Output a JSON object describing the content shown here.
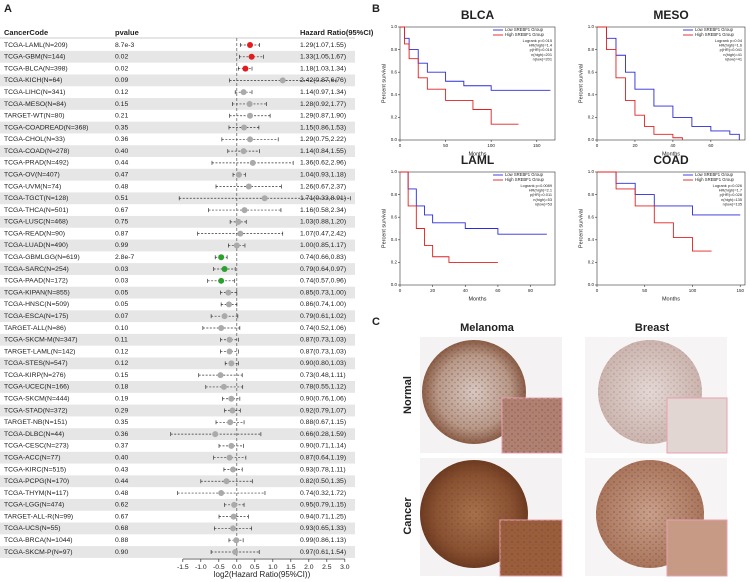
{
  "panels": {
    "a": "A",
    "b": "B",
    "c": "C"
  },
  "forest": {
    "type": "forest",
    "headers": [
      "CancerCode",
      "pvalue",
      "Hazard Ratio(95%CI)"
    ],
    "xlabel": "log2(Hazard Ratio(95%CI))",
    "xscale": "log2",
    "xlim": [
      -1.8,
      3.2
    ],
    "xticks": [
      -1.5,
      {
        "value": -1,
        "label": "-1.0"
      },
      -0.5,
      {
        "value": 0,
        "label": "0.0"
      },
      0.5,
      {
        "value": 1,
        "label": "1.0"
      },
      1.5,
      {
        "value": 2,
        "label": "2.0"
      },
      2.5,
      {
        "value": 3,
        "label": "3.0"
      }
    ],
    "rows": [
      {
        "code": "TCGA-LAML(N=209)",
        "p": "8.7e-3",
        "hr_label": "1.29(1.07,1.55)",
        "hr": 1.29,
        "lo": 1.07,
        "hi": 1.55,
        "color": "#e41a1c"
      },
      {
        "code": "TCGA-GBM(N=144)",
        "p": "0.02",
        "hr_label": "1.33(1.05,1.67)",
        "hr": 1.33,
        "lo": 1.05,
        "hi": 1.67,
        "color": "#e41a1c"
      },
      {
        "code": "TCGA-BLCA(N=398)",
        "p": "0.02",
        "hr_label": "1.18(1.03,1.34)",
        "hr": 1.18,
        "lo": 1.03,
        "hi": 1.34,
        "color": "#e41a1c"
      },
      {
        "code": "TCGA-KICH(N=64)",
        "p": "0.09",
        "hr_label": "2.42(0.87,6.76)",
        "hr": 2.42,
        "lo": 0.87,
        "hi": 6.76,
        "color": "#aaaaaa"
      },
      {
        "code": "TCGA-LIHC(N=341)",
        "p": "0.12",
        "hr_label": "1.14(0.97,1.34)",
        "hr": 1.14,
        "lo": 0.97,
        "hi": 1.34,
        "color": "#aaaaaa"
      },
      {
        "code": "TCGA-MESO(N=84)",
        "p": "0.15",
        "hr_label": "1.28(0.92,1.77)",
        "hr": 1.28,
        "lo": 0.92,
        "hi": 1.77,
        "color": "#aaaaaa"
      },
      {
        "code": "TARGET-WT(N=80)",
        "p": "0.21",
        "hr_label": "1.29(0.87,1.90)",
        "hr": 1.29,
        "lo": 0.87,
        "hi": 1.9,
        "color": "#aaaaaa"
      },
      {
        "code": "TCGA-COADREAD(N=368)",
        "p": "0.35",
        "hr_label": "1.15(0.86,1.53)",
        "hr": 1.15,
        "lo": 0.86,
        "hi": 1.53,
        "color": "#aaaaaa"
      },
      {
        "code": "TCGA-CHOL(N=33)",
        "p": "0.36",
        "hr_label": "1.29(0.75,2.22)",
        "hr": 1.29,
        "lo": 0.75,
        "hi": 2.22,
        "color": "#aaaaaa"
      },
      {
        "code": "TCGA-COAD(N=278)",
        "p": "0.40",
        "hr_label": "1.14(0.84,1.55)",
        "hr": 1.14,
        "lo": 0.84,
        "hi": 1.55,
        "color": "#aaaaaa"
      },
      {
        "code": "TCGA-PRAD(N=492)",
        "p": "0.44",
        "hr_label": "1.36(0.62,2.96)",
        "hr": 1.36,
        "lo": 0.62,
        "hi": 2.96,
        "color": "#aaaaaa"
      },
      {
        "code": "TCGA-OV(N=407)",
        "p": "0.47",
        "hr_label": "1.04(0.93,1.18)",
        "hr": 1.04,
        "lo": 0.93,
        "hi": 1.18,
        "color": "#aaaaaa"
      },
      {
        "code": "TCGA-UVM(N=74)",
        "p": "0.48",
        "hr_label": "1.26(0.67,2.37)",
        "hr": 1.26,
        "lo": 0.67,
        "hi": 2.37,
        "color": "#aaaaaa"
      },
      {
        "code": "TCGA-TGCT(N=128)",
        "p": "0.51",
        "hr_label": "1.71(0.33,8.91)",
        "hr": 1.71,
        "lo": 0.33,
        "hi": 8.91,
        "color": "#aaaaaa"
      },
      {
        "code": "TCGA-THCA(N=501)",
        "p": "0.67",
        "hr_label": "1.16(0.58,2.34)",
        "hr": 1.16,
        "lo": 0.58,
        "hi": 2.34,
        "color": "#aaaaaa"
      },
      {
        "code": "TCGA-LUSC(N=468)",
        "p": "0.75",
        "hr_label": "1.03(0.88,1.20)",
        "hr": 1.03,
        "lo": 0.88,
        "hi": 1.2,
        "color": "#aaaaaa"
      },
      {
        "code": "TCGA-READ(N=90)",
        "p": "0.87",
        "hr_label": "1.07(0.47,2.42)",
        "hr": 1.07,
        "lo": 0.47,
        "hi": 2.42,
        "color": "#aaaaaa"
      },
      {
        "code": "TCGA-LUAD(N=490)",
        "p": "0.99",
        "hr_label": "1.00(0.85,1.17)",
        "hr": 1.0,
        "lo": 0.85,
        "hi": 1.17,
        "color": "#aaaaaa"
      },
      {
        "code": "TCGA-GBMLGG(N=619)",
        "p": "2.8e-7",
        "hr_label": "0.74(0.66,0.83)",
        "hr": 0.74,
        "lo": 0.66,
        "hi": 0.83,
        "color": "#2ca02c"
      },
      {
        "code": "TCGA-SARC(N=254)",
        "p": "0.03",
        "hr_label": "0.79(0.64,0.97)",
        "hr": 0.79,
        "lo": 0.64,
        "hi": 0.97,
        "color": "#2ca02c"
      },
      {
        "code": "TCGA-PAAD(N=172)",
        "p": "0.03",
        "hr_label": "0.74(0.57,0.96)",
        "hr": 0.74,
        "lo": 0.57,
        "hi": 0.96,
        "color": "#2ca02c"
      },
      {
        "code": "TCGA-KIPAN(N=855)",
        "p": "0.05",
        "hr_label": "0.85(0.73,1.00)",
        "hr": 0.85,
        "lo": 0.73,
        "hi": 1.0,
        "color": "#aaaaaa"
      },
      {
        "code": "TCGA-HNSC(N=509)",
        "p": "0.05",
        "hr_label": "0.86(0.74,1.00)",
        "hr": 0.86,
        "lo": 0.74,
        "hi": 1.0,
        "color": "#aaaaaa"
      },
      {
        "code": "TCGA-ESCA(N=175)",
        "p": "0.07",
        "hr_label": "0.79(0.61,1.02)",
        "hr": 0.79,
        "lo": 0.61,
        "hi": 1.02,
        "color": "#aaaaaa"
      },
      {
        "code": "TARGET-ALL(N=86)",
        "p": "0.10",
        "hr_label": "0.74(0.52,1.06)",
        "hr": 0.74,
        "lo": 0.52,
        "hi": 1.06,
        "color": "#aaaaaa"
      },
      {
        "code": "TCGA-SKCM-M(N=347)",
        "p": "0.11",
        "hr_label": "0.87(0.73,1.03)",
        "hr": 0.87,
        "lo": 0.73,
        "hi": 1.03,
        "color": "#aaaaaa"
      },
      {
        "code": "TARGET-LAML(N=142)",
        "p": "0.12",
        "hr_label": "0.87(0.73,1.03)",
        "hr": 0.87,
        "lo": 0.73,
        "hi": 1.03,
        "color": "#aaaaaa"
      },
      {
        "code": "TCGA-STES(N=547)",
        "p": "0.12",
        "hr_label": "0.90(0.80,1.03)",
        "hr": 0.9,
        "lo": 0.8,
        "hi": 1.03,
        "color": "#aaaaaa"
      },
      {
        "code": "TCGA-KIRP(N=276)",
        "p": "0.15",
        "hr_label": "0.73(0.48,1.11)",
        "hr": 0.73,
        "lo": 0.48,
        "hi": 1.11,
        "color": "#aaaaaa"
      },
      {
        "code": "TCGA-UCEC(N=166)",
        "p": "0.18",
        "hr_label": "0.78(0.55,1.12)",
        "hr": 0.78,
        "lo": 0.55,
        "hi": 1.12,
        "color": "#aaaaaa"
      },
      {
        "code": "TCGA-SKCM(N=444)",
        "p": "0.19",
        "hr_label": "0.90(0.76,1.06)",
        "hr": 0.9,
        "lo": 0.76,
        "hi": 1.06,
        "color": "#aaaaaa"
      },
      {
        "code": "TCGA-STAD(N=372)",
        "p": "0.29",
        "hr_label": "0.92(0.79,1.07)",
        "hr": 0.92,
        "lo": 0.79,
        "hi": 1.07,
        "color": "#aaaaaa"
      },
      {
        "code": "TARGET-NB(N=151)",
        "p": "0.35",
        "hr_label": "0.88(0.67,1.15)",
        "hr": 0.88,
        "lo": 0.67,
        "hi": 1.15,
        "color": "#aaaaaa"
      },
      {
        "code": "TCGA-DLBC(N=44)",
        "p": "0.36",
        "hr_label": "0.66(0.28,1.59)",
        "hr": 0.66,
        "lo": 0.28,
        "hi": 1.59,
        "color": "#aaaaaa"
      },
      {
        "code": "TCGA-CESC(N=273)",
        "p": "0.37",
        "hr_label": "0.90(0.71,1.14)",
        "hr": 0.9,
        "lo": 0.71,
        "hi": 1.14,
        "color": "#aaaaaa"
      },
      {
        "code": "TCGA-ACC(N=77)",
        "p": "0.40",
        "hr_label": "0.87(0.64,1.19)",
        "hr": 0.87,
        "lo": 0.64,
        "hi": 1.19,
        "color": "#aaaaaa"
      },
      {
        "code": "TCGA-KIRC(N=515)",
        "p": "0.43",
        "hr_label": "0.93(0.78,1.11)",
        "hr": 0.93,
        "lo": 0.78,
        "hi": 1.11,
        "color": "#aaaaaa"
      },
      {
        "code": "TCGA-PCPG(N=170)",
        "p": "0.44",
        "hr_label": "0.82(0.50,1.35)",
        "hr": 0.82,
        "lo": 0.5,
        "hi": 1.35,
        "color": "#aaaaaa"
      },
      {
        "code": "TCGA-THYM(N=117)",
        "p": "0.48",
        "hr_label": "0.74(0.32,1.72)",
        "hr": 0.74,
        "lo": 0.32,
        "hi": 1.72,
        "color": "#aaaaaa"
      },
      {
        "code": "TCGA-LGG(N=474)",
        "p": "0.62",
        "hr_label": "0.95(0.79,1.15)",
        "hr": 0.95,
        "lo": 0.79,
        "hi": 1.15,
        "color": "#aaaaaa"
      },
      {
        "code": "TARGET-ALL-R(N=99)",
        "p": "0.67",
        "hr_label": "0.94(0.71,1.25)",
        "hr": 0.94,
        "lo": 0.71,
        "hi": 1.25,
        "color": "#aaaaaa"
      },
      {
        "code": "TCGA-UCS(N=55)",
        "p": "0.68",
        "hr_label": "0.93(0.65,1.33)",
        "hr": 0.93,
        "lo": 0.65,
        "hi": 1.33,
        "color": "#aaaaaa"
      },
      {
        "code": "TCGA-BRCA(N=1044)",
        "p": "0.88",
        "hr_label": "0.99(0.86,1.13)",
        "hr": 0.99,
        "lo": 0.86,
        "hi": 1.13,
        "color": "#aaaaaa"
      },
      {
        "code": "TCGA-SKCM-P(N=97)",
        "p": "0.90",
        "hr_label": "0.97(0.61,1.54)",
        "hr": 0.97,
        "lo": 0.61,
        "hi": 1.54,
        "color": "#aaaaaa"
      }
    ]
  },
  "km": [
    {
      "type": "line",
      "step": true,
      "title": "BLCA",
      "xlabel": "Months",
      "ylabel": "Percent survival",
      "xlim": [
        0,
        170
      ],
      "xticks": [
        0,
        50,
        100,
        150
      ],
      "ylim": [
        0,
        1
      ],
      "yticks": [
        {
          "value": 0,
          "label": "0.0"
        },
        0.2,
        0.4,
        0.6,
        0.8,
        {
          "value": 1,
          "label": "1.0"
        }
      ],
      "stats": [
        "Logrank p=0.015",
        "HR(high)=1.4",
        "p(HR)=0.016",
        "n(high)=201",
        "n(low)=201"
      ],
      "series": [
        {
          "name": "Low SREBF1 Group",
          "color": "#2b2bd9",
          "x": [
            0,
            5,
            10,
            20,
            30,
            50,
            70,
            100,
            165
          ],
          "values": [
            1,
            0.9,
            0.8,
            0.68,
            0.6,
            0.52,
            0.48,
            0.44,
            0.44
          ]
        },
        {
          "name": "High SREBF1 Group",
          "color": "#e02020",
          "x": [
            0,
            5,
            10,
            20,
            30,
            50,
            80,
            100,
            130
          ],
          "values": [
            1,
            0.85,
            0.72,
            0.55,
            0.45,
            0.35,
            0.27,
            0.14,
            0.14
          ]
        }
      ]
    },
    {
      "type": "line",
      "step": true,
      "title": "MESO",
      "xlabel": "Months",
      "ylabel": "Percent survival",
      "xlim": [
        0,
        78
      ],
      "xticks": [
        0,
        20,
        40,
        60
      ],
      "ylim": [
        0,
        1
      ],
      "yticks": [
        {
          "value": 0,
          "label": "0.0"
        },
        0.2,
        0.4,
        0.6,
        0.8,
        {
          "value": 1,
          "label": "1.0"
        }
      ],
      "stats": [
        "Logrank p=0.04",
        "HR(high)=1.6",
        "p(HR)=0.041",
        "n(high)=41",
        "n(low)=41"
      ],
      "series": [
        {
          "name": "Low SREBF1 Group",
          "color": "#2b2bd9",
          "x": [
            0,
            5,
            10,
            15,
            20,
            30,
            40,
            50,
            60,
            70,
            75
          ],
          "values": [
            1,
            0.9,
            0.75,
            0.6,
            0.45,
            0.3,
            0.2,
            0.12,
            0.08,
            0.05,
            0
          ]
        },
        {
          "name": "High SREBF1 Group",
          "color": "#e02020",
          "x": [
            0,
            5,
            10,
            15,
            20,
            25,
            30,
            40,
            45
          ],
          "values": [
            1,
            0.8,
            0.55,
            0.35,
            0.22,
            0.12,
            0.05,
            0.02,
            0
          ]
        }
      ]
    },
    {
      "type": "line",
      "step": true,
      "title": "LAML",
      "xlabel": "Months",
      "ylabel": "Percent survival",
      "xlim": [
        0,
        95
      ],
      "xticks": [
        0,
        20,
        40,
        60,
        80
      ],
      "ylim": [
        0,
        1
      ],
      "yticks": [
        {
          "value": 0,
          "label": "0.0"
        },
        0.2,
        0.4,
        0.6,
        0.8,
        {
          "value": 1,
          "label": "1.0"
        }
      ],
      "stats": [
        "Logrank p=0.0089",
        "HR(high)=2.1",
        "p(HR)=0.011",
        "n(high)=53",
        "n(low)=53"
      ],
      "series": [
        {
          "name": "Low SREBF1 Group",
          "color": "#2b2bd9",
          "x": [
            0,
            5,
            10,
            15,
            20,
            40,
            60,
            90
          ],
          "values": [
            1,
            0.85,
            0.7,
            0.62,
            0.55,
            0.5,
            0.45,
            0.45
          ]
        },
        {
          "name": "High SREBF1 Group",
          "color": "#e02020",
          "x": [
            0,
            5,
            10,
            15,
            20,
            30,
            60
          ],
          "values": [
            1,
            0.7,
            0.5,
            0.35,
            0.25,
            0.2,
            0.2
          ]
        }
      ]
    },
    {
      "type": "line",
      "step": true,
      "title": "COAD",
      "xlabel": "Months",
      "ylabel": "Percent survival",
      "xlim": [
        0,
        155
      ],
      "xticks": [
        0,
        50,
        100,
        150
      ],
      "ylim": [
        0,
        1
      ],
      "yticks": [
        {
          "value": 0,
          "label": "0.0"
        },
        0.2,
        0.4,
        0.6,
        0.8,
        {
          "value": 1,
          "label": "1.0"
        }
      ],
      "stats": [
        "Logrank p=0.026",
        "HR(high)=1.7",
        "p(HR)=0.028",
        "n(high)=135",
        "n(low)=135"
      ],
      "series": [
        {
          "name": "Low SREBF1 Group",
          "color": "#2b2bd9",
          "x": [
            0,
            20,
            40,
            60,
            100,
            150
          ],
          "values": [
            1,
            0.9,
            0.8,
            0.7,
            0.62,
            0.62
          ]
        },
        {
          "name": "High SREBF1 Group",
          "color": "#e02020",
          "x": [
            0,
            20,
            40,
            60,
            80,
            100,
            120
          ],
          "values": [
            1,
            0.85,
            0.7,
            0.55,
            0.42,
            0.3,
            0.3
          ]
        }
      ]
    }
  ],
  "ihc": {
    "columns": [
      "Melanoma",
      "Breast"
    ],
    "rows": [
      "Normal",
      "Cancer"
    ]
  }
}
